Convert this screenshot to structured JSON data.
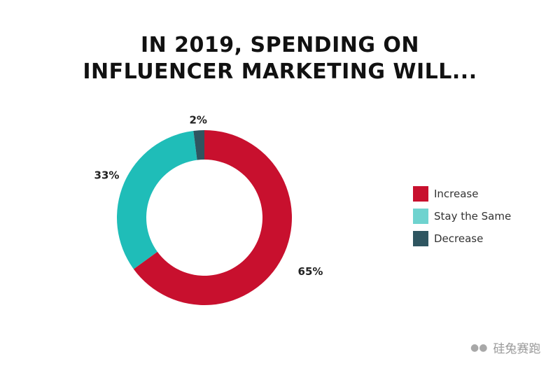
{
  "title": {
    "line1": "IN 2019, SPENDING ON",
    "line2": "INFLUENCER MARKETING WILL..."
  },
  "chart_data": {
    "type": "pie",
    "donut": true,
    "categories": [
      "Increase",
      "Stay the Same",
      "Decrease"
    ],
    "values": [
      65,
      33,
      2
    ],
    "labels": [
      "65%",
      "33%",
      "2%"
    ],
    "colors": [
      "#C8102E",
      "#1FBDB8",
      "#2E5560"
    ],
    "legend_colors": [
      "#C8102E",
      "#6FD3CF",
      "#2E5560"
    ],
    "legend_position": "right"
  },
  "watermark": {
    "icon": "wechat-icon",
    "text": "硅兔赛跑"
  }
}
